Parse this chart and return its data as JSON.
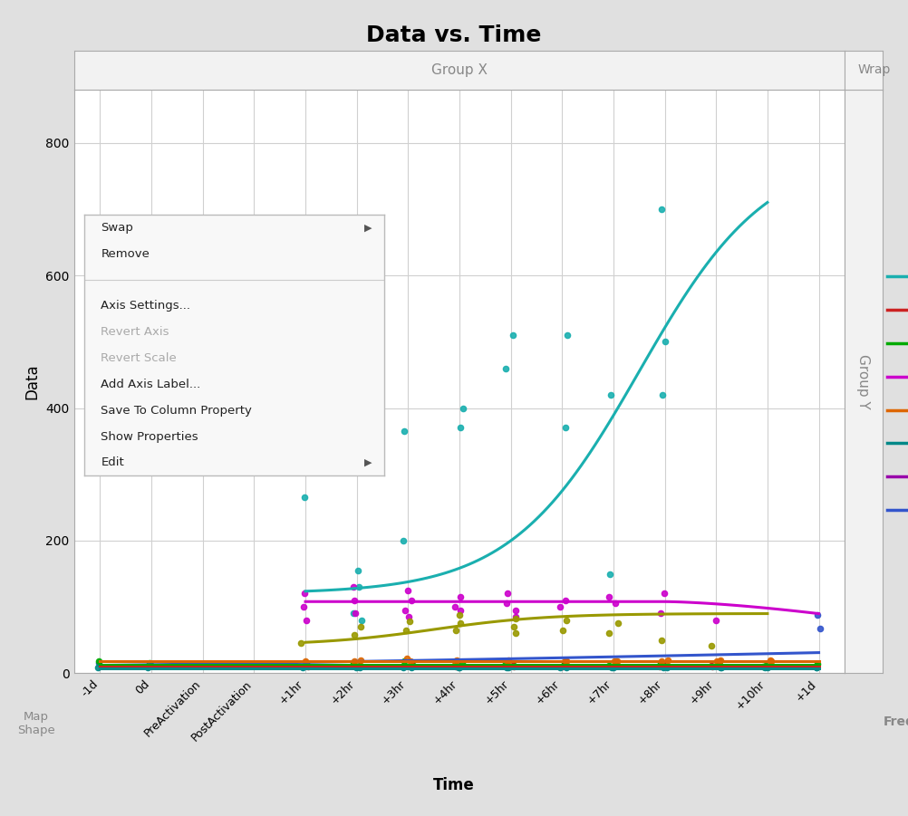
{
  "title": "Data vs. Time",
  "xlabel": "Time",
  "ylabel": "Data",
  "group_x_label": "Group X",
  "group_y_label": "Group Y",
  "wrap_label": "Wrap",
  "freq_label": "Freq",
  "map_shape_label": "Map\nShape",
  "x_ticks": [
    "-1d",
    "0d",
    "PreActivation",
    "PostActivation",
    "+1hr",
    "+2hr",
    "+3hr",
    "+4hr",
    "+5hr",
    "+6hr",
    "+7hr",
    "+8hr",
    "+9hr",
    "+10hr",
    "+1d"
  ],
  "ylim": [
    0,
    880
  ],
  "yticks": [
    0,
    200,
    400,
    600,
    800
  ],
  "bg_color": "#e0e0e0",
  "plot_bg_color": "#ffffff",
  "panel_bg_color": "#f2f2f2",
  "grid_color": "#d0d0d0",
  "series_colors": {
    "cyan": "#1aafaf",
    "magenta": "#cc00cc",
    "olive": "#999900",
    "blue": "#3355cc",
    "green": "#00aa00",
    "red": "#cc2222",
    "orange": "#dd6600",
    "dark_teal": "#008888"
  },
  "menu_items": [
    {
      "text": "Swap",
      "arrow": true,
      "grayed": false
    },
    {
      "text": "Remove",
      "arrow": false,
      "grayed": false
    },
    {
      "text": "---"
    },
    {
      "text": "Axis Settings...",
      "arrow": false,
      "grayed": false
    },
    {
      "text": "Revert Axis",
      "arrow": false,
      "grayed": true
    },
    {
      "text": "Revert Scale",
      "arrow": false,
      "grayed": true
    },
    {
      "text": "Add Axis Label...",
      "arrow": false,
      "grayed": false
    },
    {
      "text": "Save To Column Property",
      "arrow": false,
      "grayed": false
    },
    {
      "text": "Show Properties",
      "arrow": false,
      "grayed": false
    },
    {
      "text": "Edit",
      "arrow": true,
      "grayed": false
    }
  ],
  "legend_colors": [
    "#1aafaf",
    "#cc2222",
    "#00aa00",
    "#cc00cc",
    "#dd6600",
    "#008888",
    "#9900aa",
    "#3355cc"
  ]
}
